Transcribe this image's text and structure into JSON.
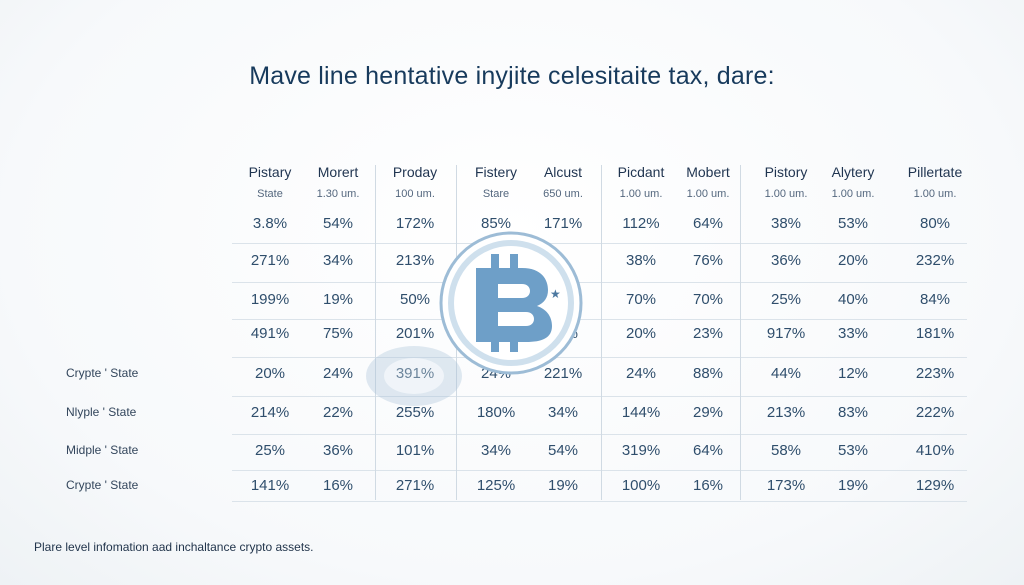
{
  "title": "Mave line hentative inyjite celesitaite tax, dare:",
  "footer": "Plare level infomation aad inchaltance crypto assets.",
  "icons": {
    "logo": "bitcoin-coin-icon"
  },
  "colors": {
    "title": "#173a5c",
    "logo": "#6e9fc8"
  },
  "chart_data": {
    "type": "table",
    "columns": [
      {
        "header": "Pistary",
        "sub": "State"
      },
      {
        "header": "Morert",
        "sub": "1.30 um."
      },
      {
        "header": "Proday",
        "sub": "100 um."
      },
      {
        "header": "Fistery",
        "sub": "Stare"
      },
      {
        "header": "Alcust",
        "sub": "650 um."
      },
      {
        "header": "Picdant",
        "sub": "1.00 um."
      },
      {
        "header": "Mobert",
        "sub": "1.00 um."
      },
      {
        "header": "Pistory",
        "sub": "1.00 um."
      },
      {
        "header": "Alytery",
        "sub": "1.00 um."
      },
      {
        "header": "Pillertate",
        "sub": "1.00 um."
      }
    ],
    "rows": [
      {
        "label": "",
        "values": [
          "3.8%",
          "54%",
          "172%",
          "85%",
          "171%",
          "112%",
          "64%",
          "38%",
          "53%",
          "80%"
        ]
      },
      {
        "label": "",
        "values": [
          "271%",
          "34%",
          "213%",
          "",
          "",
          "38%",
          "76%",
          "36%",
          "20%",
          "232%"
        ]
      },
      {
        "label": "",
        "values": [
          "199%",
          "19%",
          "50%",
          "",
          "",
          "70%",
          "70%",
          "25%",
          "40%",
          "84%"
        ]
      },
      {
        "label": "",
        "values": [
          "491%",
          "75%",
          "201%",
          "",
          "31%",
          "20%",
          "23%",
          "917%",
          "33%",
          "181%"
        ]
      },
      {
        "label": "Crypte ' State",
        "values": [
          "20%",
          "24%",
          "391%",
          "24%",
          "221%",
          "24%",
          "88%",
          "44%",
          "12%",
          "223%"
        ]
      },
      {
        "label": "Nlyple ' State",
        "values": [
          "214%",
          "22%",
          "255%",
          "180%",
          "34%",
          "144%",
          "29%",
          "213%",
          "83%",
          "222%"
        ]
      },
      {
        "label": "Midple ' State",
        "values": [
          "25%",
          "36%",
          "101%",
          "34%",
          "54%",
          "319%",
          "64%",
          "58%",
          "53%",
          "410%"
        ]
      },
      {
        "label": "Crypte ' State",
        "values": [
          "141%",
          "16%",
          "271%",
          "125%",
          "19%",
          "100%",
          "16%",
          "173%",
          "19%",
          "129%"
        ]
      }
    ]
  }
}
